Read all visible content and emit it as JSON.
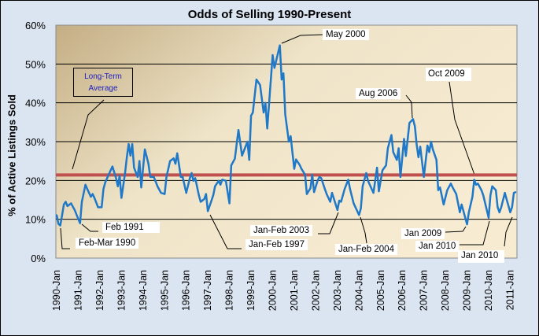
{
  "chart_data": {
    "type": "line",
    "title": "Odds of Selling 1990-Present",
    "xlabel": "",
    "ylabel": "% of Active Listings Sold",
    "ylim": [
      0,
      60
    ],
    "yticks": [
      "0%",
      "10%",
      "20%",
      "30%",
      "40%",
      "50%",
      "60%"
    ],
    "xticks": [
      "1990-Jan",
      "1991-Jan",
      "1992-Jan",
      "1993-Jan",
      "1994-Jan",
      "1995-Jan",
      "1996-Jan",
      "1997-Jan",
      "1998-Jan",
      "1999-Jan",
      "2000-Jan",
      "2001-Jan",
      "2002-Jan",
      "2003-Jan",
      "2004-Jan",
      "2005-Jan",
      "2006-Jan",
      "2007-Jan",
      "2008-Jan",
      "2009-Jan",
      "2010-Jan",
      "2011-Jan"
    ],
    "grid": true,
    "series_color": "#1f78c8",
    "average_color": "#c0504d",
    "long_term_average": 21.4,
    "x": [
      "1990-01",
      "1990-02",
      "1990-03",
      "1990-04",
      "1990-05",
      "1990-06",
      "1990-07",
      "1990-09",
      "1990-11",
      "1991-01",
      "1991-02",
      "1991-03",
      "1991-05",
      "1991-06",
      "1991-08",
      "1991-09",
      "1991-10",
      "1991-12",
      "1992-02",
      "1992-03",
      "1992-04",
      "1992-06",
      "1992-08",
      "1992-10",
      "1992-11",
      "1992-12",
      "1993-01",
      "1993-03",
      "1993-04",
      "1993-05",
      "1993-06",
      "1993-07",
      "1993-08",
      "1993-10",
      "1993-11",
      "1993-12",
      "1994-02",
      "1994-04",
      "1994-05",
      "1994-07",
      "1994-09",
      "1994-11",
      "1995-01",
      "1995-02",
      "1995-04",
      "1995-06",
      "1995-07",
      "1995-08",
      "1995-10",
      "1995-11",
      "1996-01",
      "1996-03",
      "1996-04",
      "1996-05",
      "1996-06",
      "1996-08",
      "1996-09",
      "1996-11",
      "1996-12",
      "1997-01",
      "1997-03",
      "1997-04",
      "1997-05",
      "1997-07",
      "1997-08",
      "1997-09",
      "1997-11",
      "1998-01",
      "1998-02",
      "1998-04",
      "1998-06",
      "1998-08",
      "1998-11",
      "1998-12",
      "1999-01",
      "1999-02",
      "1999-04",
      "1999-06",
      "1999-08",
      "1999-09",
      "1999-10",
      "2000-01",
      "2000-02",
      "2000-05",
      "2000-06",
      "2000-07",
      "2000-08",
      "2000-10",
      "2000-11",
      "2001-01",
      "2001-02",
      "2001-04",
      "2001-05",
      "2001-07",
      "2001-08",
      "2001-10",
      "2001-11",
      "2001-12",
      "2002-02",
      "2002-03",
      "2002-04",
      "2002-06",
      "2002-07",
      "2002-09",
      "2002-10",
      "2003-01",
      "2003-02",
      "2003-03",
      "2003-05",
      "2003-07",
      "2003-08",
      "2003-10",
      "2004-01",
      "2004-02",
      "2004-03",
      "2004-05",
      "2004-06",
      "2004-09",
      "2004-11",
      "2004-12",
      "2005-02",
      "2005-04",
      "2005-05",
      "2005-07",
      "2005-08",
      "2005-10",
      "2005-11",
      "2005-12",
      "2006-02",
      "2006-03",
      "2006-05",
      "2006-07",
      "2006-08",
      "2006-09",
      "2006-10",
      "2006-11",
      "2007-01",
      "2007-03",
      "2007-04",
      "2007-05",
      "2007-06",
      "2007-08",
      "2007-09",
      "2007-10",
      "2007-12",
      "2008-02",
      "2008-04",
      "2008-05",
      "2008-07",
      "2008-09",
      "2008-10",
      "2009-01",
      "2009-02",
      "2009-04",
      "2009-05",
      "2009-06",
      "2009-07",
      "2009-09",
      "2009-10",
      "2010-01",
      "2010-02",
      "2010-03",
      "2010-05",
      "2010-06",
      "2010-07",
      "2010-08",
      "2010-10",
      "2011-01",
      "2011-02",
      "2011-03",
      "2011-04"
    ],
    "y": [
      11.1,
      8.8,
      8.4,
      11,
      13.8,
      14.5,
      13.4,
      14.1,
      12.4,
      10.1,
      9.0,
      14.5,
      18.9,
      17.8,
      15.8,
      16.5,
      15.5,
      13.1,
      13.1,
      17.8,
      19.5,
      21.6,
      23.6,
      20.6,
      18.5,
      21.2,
      15.5,
      21.9,
      26,
      29.4,
      26.4,
      29.4,
      23.3,
      20.9,
      25,
      18.2,
      28,
      24.3,
      20.9,
      20.9,
      18.5,
      16.8,
      16.5,
      20.9,
      25,
      25.7,
      24.3,
      27,
      20.9,
      20.9,
      16.8,
      20.6,
      21.9,
      19.9,
      20.6,
      16.2,
      14.5,
      15.2,
      16.5,
      12.1,
      14.8,
      16.2,
      18.5,
      19.9,
      18.9,
      20.2,
      19.9,
      14.1,
      23.9,
      25.6,
      33,
      26.4,
      30,
      25.3,
      36.7,
      37.5,
      46,
      44.6,
      37.5,
      40,
      33.4,
      52.3,
      49,
      54.8,
      46,
      47.6,
      37,
      30,
      31.4,
      23,
      25.4,
      24,
      23,
      21.5,
      16.5,
      18,
      21.5,
      17,
      20,
      20.9,
      20.6,
      17.8,
      16.5,
      14.5,
      16.8,
      12.4,
      14.8,
      14.5,
      17.8,
      20.2,
      17.8,
      14.1,
      11.1,
      12.8,
      18.5,
      21.9,
      19.9,
      16.8,
      23.3,
      17.2,
      22.6,
      23.9,
      28.3,
      31.7,
      27.3,
      25.3,
      28.3,
      20.9,
      30.7,
      26.3,
      34.8,
      35.8,
      34,
      29.3,
      26,
      28.7,
      20.9,
      29,
      27.3,
      30,
      28,
      25.3,
      17.5,
      18.2,
      13.8,
      17.5,
      19.2,
      18.2,
      16.5,
      11.8,
      13.8,
      8.7,
      11.8,
      15.8,
      20.2,
      18.9,
      19.2,
      17.5,
      16.2,
      10.4,
      16.2,
      18.5,
      17.5,
      13.1,
      11.8,
      13.1,
      16.8,
      11.8,
      13.1,
      16.8,
      17
    ],
    "annotations": {
      "long_term_average": "Long-Term Average",
      "lta_line1": "Long-Term",
      "lta_line2": "Average",
      "may_2000": "May 2000",
      "aug_2006": "Aug 2006",
      "oct_2009": "Oct 2009",
      "feb_1991": "Feb 1991",
      "feb_mar_1990": "Feb-Mar 1990",
      "jan_feb_1997": "Jan-Feb 1997",
      "jan_feb_2003": "Jan-Feb 2003",
      "jan_feb_2004": "Jan-Feb 2004",
      "jan_2009": "Jan 2009",
      "jan_2010_a": "Jan 2010",
      "jan_2010_b": "Jan 2010"
    }
  }
}
